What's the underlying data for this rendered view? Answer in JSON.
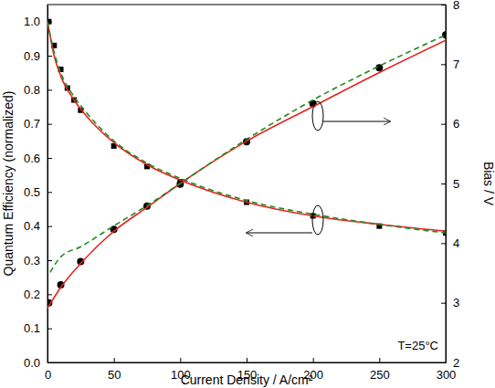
{
  "chart_data": {
    "type": "scatter",
    "x_label": "Current Density / A/cm²",
    "y_label": "Quantum Efficiency (normalized)",
    "y2_label": "Bias / V",
    "annotations": [
      "T=25°C"
    ],
    "xlim": [
      0,
      300
    ],
    "xticks": [
      0,
      50,
      100,
      150,
      200,
      250,
      300
    ],
    "ylim": [
      0,
      1.05
    ],
    "yticks": [
      {
        "value": 0,
        "label": "0.0"
      },
      0.1,
      0.2,
      0.3,
      0.4,
      0.5,
      0.6,
      0.7,
      0.8,
      0.9,
      {
        "value": 1,
        "label": "1.0"
      }
    ],
    "y2lim": [
      2,
      8
    ],
    "y2ticks": [
      2,
      3,
      4,
      5,
      6,
      7,
      8
    ],
    "grid": false,
    "series": [
      {
        "type": "scatter",
        "marker": "square",
        "color": "#000000",
        "x": [
          1,
          5,
          10,
          15,
          20,
          25,
          50,
          75,
          100,
          150,
          200,
          250,
          300
        ],
        "values": [
          1.0,
          0.93,
          0.86,
          0.805,
          0.77,
          0.74,
          0.635,
          0.575,
          0.53,
          0.47,
          0.43,
          0.4,
          0.38
        ]
      },
      {
        "type": "line",
        "line_style": "solid",
        "color": "#e8231f",
        "x": [
          0,
          5,
          10,
          20,
          30,
          50,
          75,
          100,
          150,
          200,
          250,
          300
        ],
        "values": [
          1.0,
          0.9,
          0.84,
          0.77,
          0.72,
          0.645,
          0.58,
          0.535,
          0.47,
          0.43,
          0.405,
          0.385
        ]
      },
      {
        "type": "line",
        "line_style": "dashed",
        "color": "#1e8a1e",
        "x": [
          0,
          5,
          10,
          20,
          30,
          50,
          75,
          100,
          150,
          200,
          250,
          300
        ],
        "values": [
          1.0,
          0.91,
          0.85,
          0.78,
          0.73,
          0.65,
          0.585,
          0.54,
          0.475,
          0.435,
          0.405,
          0.38
        ]
      },
      {
        "type": "scatter",
        "marker": "circle",
        "color": "#000000",
        "axis": "y2",
        "x": [
          1,
          10,
          25,
          50,
          75,
          100,
          150,
          200,
          250,
          300
        ],
        "values": [
          3.0,
          3.3,
          3.69,
          4.23,
          4.62,
          4.99,
          5.7,
          6.34,
          6.94,
          7.49
        ]
      },
      {
        "type": "line",
        "line_style": "solid",
        "color": "#e8231f",
        "axis": "y2",
        "x": [
          0,
          10,
          25,
          50,
          75,
          100,
          150,
          200,
          250,
          300
        ],
        "values": [
          2.91,
          3.26,
          3.66,
          4.2,
          4.6,
          5.0,
          5.71,
          6.29,
          6.86,
          7.4
        ]
      },
      {
        "type": "line",
        "line_style": "dashed",
        "color": "#1e8a1e",
        "axis": "y2",
        "x": [
          2,
          10,
          25,
          50,
          75,
          100,
          150,
          200,
          250,
          300
        ],
        "values": [
          3.51,
          3.77,
          3.94,
          4.29,
          4.63,
          5.0,
          5.74,
          6.4,
          6.97,
          7.49
        ]
      }
    ]
  }
}
